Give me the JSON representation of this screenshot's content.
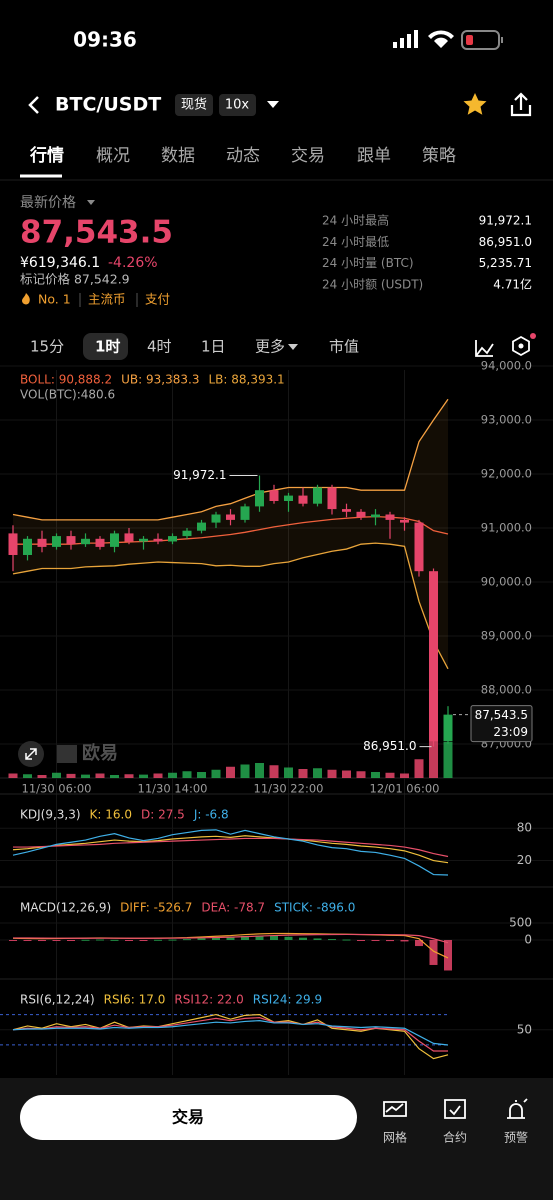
{
  "status_bar": {
    "time": "09:36"
  },
  "header": {
    "pair": "BTC/USDT",
    "badge_spot": "现货",
    "badge_leverage": "10x"
  },
  "tabs": [
    "行情",
    "概况",
    "数据",
    "动态",
    "交易",
    "跟单",
    "策略"
  ],
  "price": {
    "label": "最新价格",
    "last": "87,543.5",
    "cny": "¥619,346.1",
    "change": "-4.26%",
    "mark": "标记价格 87,542.9",
    "tags": [
      "No. 1",
      "主流币",
      "支付"
    ]
  },
  "stats": [
    {
      "label": "24 小时最高",
      "value": "91,972.1"
    },
    {
      "label": "24 小时最低",
      "value": "86,951.0"
    },
    {
      "label": "24 小时量 (BTC)",
      "value": "5,235.71"
    },
    {
      "label": "24 小时额 (USDT)",
      "value": "4.71亿"
    }
  ],
  "intervals": [
    "15分",
    "1时",
    "4时",
    "1日",
    "更多",
    "市值"
  ],
  "watermark": "欧易",
  "chart_data": {
    "type": "candlestick",
    "colors": {
      "up": "#25a750",
      "down": "#e6456a"
    },
    "ylim": [
      86370,
      93926
    ],
    "yticks": [
      {
        "value": 94000,
        "label": "94,000.0"
      },
      {
        "value": 93000,
        "label": "93,000.0"
      },
      {
        "value": 92000,
        "label": "92,000.0"
      },
      {
        "value": 91000,
        "label": "91,000.0"
      },
      {
        "value": 90000,
        "label": "90,000.0"
      },
      {
        "value": 89000,
        "label": "89,000.0"
      },
      {
        "value": 88000,
        "label": "88,000.0"
      },
      {
        "value": 87000,
        "label": "87,000.0"
      }
    ],
    "xticks": [
      {
        "value": 3,
        "label": "11/30 06:00"
      },
      {
        "value": 11,
        "label": "11/30 14:00"
      },
      {
        "value": 19,
        "label": "11/30 22:00"
      },
      {
        "value": 27,
        "label": "12/01 06:00"
      }
    ],
    "candles": [
      [
        90900,
        91050,
        90200,
        90500
      ],
      [
        90500,
        90850,
        90400,
        90800
      ],
      [
        90800,
        90950,
        90550,
        90650
      ],
      [
        90650,
        90900,
        90600,
        90850
      ],
      [
        90850,
        90950,
        90600,
        90700
      ],
      [
        90700,
        90900,
        90650,
        90800
      ],
      [
        90800,
        90850,
        90600,
        90650
      ],
      [
        90650,
        90950,
        90550,
        90900
      ],
      [
        90900,
        91000,
        90700,
        90750
      ],
      [
        90750,
        90850,
        90600,
        90800
      ],
      [
        90800,
        90900,
        90700,
        90750
      ],
      [
        90750,
        90900,
        90700,
        90850
      ],
      [
        90850,
        91000,
        90800,
        90950
      ],
      [
        90950,
        91150,
        90900,
        91100
      ],
      [
        91100,
        91300,
        91000,
        91250
      ],
      [
        91250,
        91350,
        91050,
        91150
      ],
      [
        91150,
        91450,
        91100,
        91400
      ],
      [
        91400,
        91972.1,
        91300,
        91700
      ],
      [
        91700,
        91800,
        91450,
        91500
      ],
      [
        91500,
        91650,
        91300,
        91600
      ],
      [
        91600,
        91750,
        91400,
        91450
      ],
      [
        91450,
        91800,
        91400,
        91750
      ],
      [
        91750,
        91800,
        91250,
        91350
      ],
      [
        91350,
        91450,
        91200,
        91300
      ],
      [
        91300,
        91350,
        91150,
        91200
      ],
      [
        91200,
        91350,
        91050,
        91250
      ],
      [
        91250,
        91300,
        90800,
        91150
      ],
      [
        91150,
        91200,
        90950,
        91100
      ],
      [
        91100,
        91150,
        90100,
        90200
      ],
      [
        90200,
        90250,
        86951,
        87050
      ],
      [
        87050,
        87700,
        87000,
        87543.5
      ]
    ],
    "high_label": "91,972.1",
    "low_label": "86,951.0",
    "last_label": "87,543.5",
    "countdown": "23:09",
    "boll": [
      {
        "name": "BOLL: 90,888.2",
        "color": "#f0603c",
        "values": [
          90700,
          90700,
          90700,
          90700,
          90700,
          90720,
          90720,
          90730,
          90740,
          90750,
          90760,
          90780,
          90800,
          90820,
          90850,
          90880,
          90920,
          90970,
          91020,
          91060,
          91100,
          91130,
          91160,
          91180,
          91200,
          91210,
          91200,
          91180,
          91120,
          90950,
          90888.2
        ]
      },
      {
        "name": "UB: 93,383.3",
        "color": "#f5a142",
        "values": [
          91250,
          91200,
          91150,
          91150,
          91150,
          91150,
          91150,
          91150,
          91150,
          91150,
          91150,
          91200,
          91250,
          91300,
          91400,
          91450,
          91550,
          91650,
          91700,
          91750,
          91750,
          91750,
          91750,
          91750,
          91700,
          91700,
          91700,
          91700,
          92600,
          93000,
          93383.3
        ]
      },
      {
        "name": "LB: 88,393.1",
        "color": "#e8a43a",
        "values": [
          90150,
          90200,
          90250,
          90250,
          90250,
          90280,
          90290,
          90300,
          90330,
          90350,
          90370,
          90360,
          90350,
          90340,
          90300,
          90310,
          90290,
          90290,
          90340,
          90370,
          90450,
          90510,
          90570,
          90610,
          90700,
          90720,
          90700,
          90660,
          89640,
          88900,
          88393.1
        ]
      }
    ],
    "volume": {
      "label": "VOL(BTC):480.6",
      "ylim": [
        0,
        600
      ],
      "values": [
        60,
        50,
        40,
        70,
        55,
        45,
        60,
        40,
        50,
        45,
        60,
        70,
        90,
        80,
        110,
        150,
        180,
        200,
        170,
        140,
        120,
        130,
        110,
        100,
        90,
        80,
        70,
        60,
        250,
        560,
        480.6
      ]
    },
    "kdj": {
      "label": "KDJ(9,3,3)",
      "ylim": [
        -31,
        138
      ],
      "yticks": [
        20,
        80
      ],
      "series": [
        {
          "name": "K: 16.0",
          "color": "#f0c03c",
          "values": [
            40,
            42,
            45,
            48,
            50,
            52,
            55,
            58,
            56,
            55,
            57,
            60,
            62,
            64,
            65,
            63,
            66,
            64,
            62,
            60,
            58,
            55,
            52,
            50,
            47,
            45,
            42,
            38,
            30,
            20,
            16.0
          ]
        },
        {
          "name": "D: 27.5",
          "color": "#e8506a",
          "values": [
            45,
            45,
            46,
            47,
            48,
            49,
            50,
            52,
            53,
            54,
            55,
            56,
            57,
            58,
            59,
            60,
            61,
            61,
            61,
            60,
            59,
            58,
            56,
            54,
            52,
            50,
            48,
            45,
            40,
            33,
            27.5
          ]
        },
        {
          "name": "J: -6.8",
          "color": "#3fb0e8",
          "values": [
            30,
            36,
            43,
            50,
            54,
            58,
            65,
            70,
            62,
            57,
            61,
            68,
            72,
            76,
            77,
            69,
            76,
            70,
            64,
            60,
            56,
            49,
            44,
            42,
            37,
            35,
            30,
            24,
            10,
            -6,
            -6.8
          ]
        }
      ]
    },
    "macd": {
      "label": "MACD(12,26,9)",
      "ylim": [
        -1176,
        1470
      ],
      "yticks": [
        0,
        500
      ],
      "series": [
        {
          "name": "DIFF: -526.7",
          "color": "#f0a030",
          "values": [
            50,
            45,
            40,
            45,
            50,
            55,
            60,
            55,
            50,
            50,
            55,
            60,
            70,
            90,
            110,
            130,
            160,
            180,
            190,
            190,
            185,
            180,
            175,
            170,
            160,
            150,
            140,
            130,
            40,
            -330,
            -526.7
          ]
        },
        {
          "name": "DEA: -78.7",
          "color": "#e8506a",
          "values": [
            60,
            58,
            55,
            53,
            52,
            52,
            53,
            53,
            52,
            52,
            52,
            54,
            57,
            64,
            73,
            85,
            100,
            116,
            131,
            143,
            151,
            157,
            161,
            163,
            162,
            160,
            156,
            151,
            129,
            37,
            -78.7
          ]
        }
      ],
      "stick": {
        "name": "STICK: -896.0",
        "color": "#3fb0e8",
        "values": [
          -20,
          -26,
          -30,
          -16,
          -4,
          6,
          14,
          4,
          -4,
          -4,
          6,
          12,
          26,
          52,
          74,
          90,
          120,
          128,
          118,
          94,
          68,
          46,
          28,
          14,
          -4,
          -20,
          -32,
          -42,
          -178,
          -734,
          -896.0
        ]
      }
    },
    "rsi": {
      "label": "RSI(6,12,24)",
      "ylim": [
        -11,
        113
      ],
      "yticks": [
        50
      ],
      "bands": [
        30,
        70
      ],
      "series": [
        {
          "name": "RSI6: 17.0",
          "color": "#f0c03c",
          "values": [
            50,
            55,
            52,
            58,
            54,
            57,
            52,
            60,
            53,
            55,
            54,
            58,
            62,
            66,
            70,
            64,
            69,
            70,
            60,
            62,
            57,
            63,
            52,
            50,
            48,
            52,
            50,
            48,
            25,
            12,
            17.0
          ]
        },
        {
          "name": "RSI12: 22.0",
          "color": "#e8506a",
          "values": [
            50,
            52,
            51,
            54,
            53,
            54,
            52,
            56,
            53,
            54,
            54,
            56,
            59,
            62,
            65,
            62,
            65,
            66,
            60,
            60,
            57,
            60,
            54,
            52,
            50,
            52,
            51,
            50,
            35,
            22,
            22.0
          ]
        },
        {
          "name": "RSI24: 29.9",
          "color": "#3fb0e8",
          "values": [
            50,
            51,
            51,
            52,
            52,
            52,
            51,
            53,
            52,
            53,
            53,
            54,
            56,
            58,
            60,
            59,
            61,
            62,
            59,
            59,
            57,
            58,
            55,
            54,
            53,
            54,
            53,
            52,
            42,
            32,
            29.9
          ]
        }
      ]
    }
  },
  "bottom": {
    "trade": "交易",
    "actions": [
      "网格",
      "合约",
      "预警"
    ]
  }
}
